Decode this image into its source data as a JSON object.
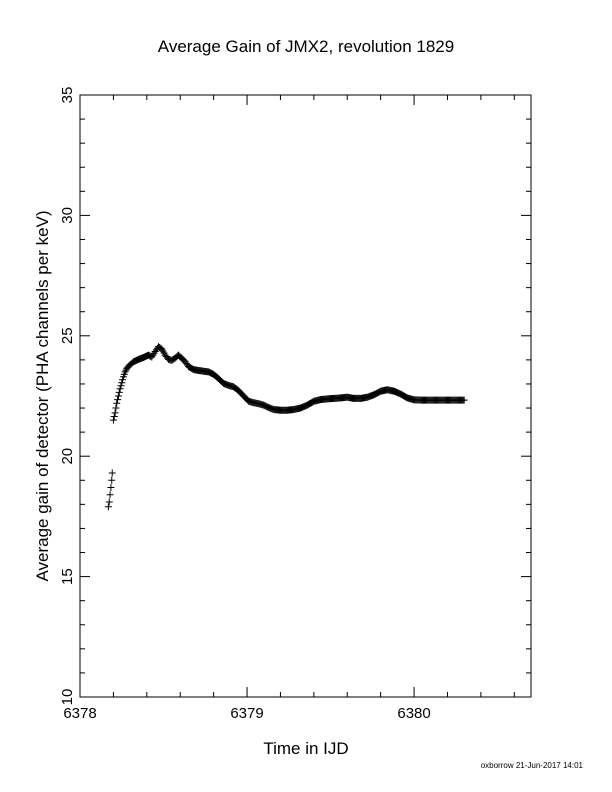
{
  "chart_data": {
    "type": "scatter",
    "title": "Average Gain of JMX2, revolution 1829",
    "xlabel": "Time in IJD",
    "ylabel": "Average gain of detector (PHA channels per keV)",
    "xlim": [
      6378,
      6380.7
    ],
    "ylim": [
      10,
      35
    ],
    "xticks": [
      6378,
      6379,
      6380
    ],
    "yticks": [
      10,
      15,
      20,
      25,
      30,
      35
    ],
    "marker": "plus",
    "grid": false,
    "footer": "oxborrow 21-Jun-2017 14:01",
    "series": [
      {
        "points": [
          [
            6378.17,
            17.9
          ],
          [
            6378.175,
            18.1
          ],
          [
            6378.18,
            18.4
          ],
          [
            6378.185,
            18.7
          ],
          [
            6378.19,
            19.0
          ],
          [
            6378.193,
            19.3
          ],
          [
            6378.2,
            21.5
          ],
          [
            6378.21,
            21.8
          ],
          [
            6378.22,
            22.2
          ],
          [
            6378.23,
            22.5
          ],
          [
            6378.24,
            22.8
          ],
          [
            6378.25,
            23.05
          ],
          [
            6378.26,
            23.3
          ],
          [
            6378.27,
            23.5
          ],
          [
            6378.28,
            23.65
          ],
          [
            6378.3,
            23.8
          ],
          [
            6378.32,
            23.92
          ],
          [
            6378.35,
            24.02
          ],
          [
            6378.38,
            24.1
          ],
          [
            6378.41,
            24.2
          ],
          [
            6378.43,
            24.12
          ],
          [
            6378.45,
            24.35
          ],
          [
            6378.47,
            24.55
          ],
          [
            6378.49,
            24.45
          ],
          [
            6378.51,
            24.2
          ],
          [
            6378.53,
            24.02
          ],
          [
            6378.55,
            23.98
          ],
          [
            6378.57,
            24.08
          ],
          [
            6378.59,
            24.2
          ],
          [
            6378.61,
            24.06
          ],
          [
            6378.63,
            23.92
          ],
          [
            6378.65,
            23.72
          ],
          [
            6378.68,
            23.6
          ],
          [
            6378.71,
            23.56
          ],
          [
            6378.74,
            23.53
          ],
          [
            6378.77,
            23.5
          ],
          [
            6378.8,
            23.4
          ],
          [
            6378.83,
            23.22
          ],
          [
            6378.86,
            23.02
          ],
          [
            6378.89,
            22.94
          ],
          [
            6378.92,
            22.88
          ],
          [
            6378.95,
            22.72
          ],
          [
            6378.98,
            22.5
          ],
          [
            6379.01,
            22.28
          ],
          [
            6379.04,
            22.22
          ],
          [
            6379.07,
            22.18
          ],
          [
            6379.1,
            22.12
          ],
          [
            6379.13,
            22.02
          ],
          [
            6379.16,
            21.94
          ],
          [
            6379.2,
            21.91
          ],
          [
            6379.24,
            21.91
          ],
          [
            6379.28,
            21.94
          ],
          [
            6379.32,
            22.0
          ],
          [
            6379.36,
            22.12
          ],
          [
            6379.4,
            22.28
          ],
          [
            6379.44,
            22.35
          ],
          [
            6379.48,
            22.38
          ],
          [
            6379.52,
            22.4
          ],
          [
            6379.56,
            22.42
          ],
          [
            6379.6,
            22.45
          ],
          [
            6379.64,
            22.4
          ],
          [
            6379.68,
            22.4
          ],
          [
            6379.72,
            22.45
          ],
          [
            6379.76,
            22.55
          ],
          [
            6379.8,
            22.7
          ],
          [
            6379.84,
            22.76
          ],
          [
            6379.88,
            22.7
          ],
          [
            6379.92,
            22.58
          ],
          [
            6379.96,
            22.42
          ],
          [
            6380.0,
            22.34
          ],
          [
            6380.05,
            22.33
          ],
          [
            6380.1,
            22.33
          ],
          [
            6380.15,
            22.33
          ],
          [
            6380.2,
            22.33
          ],
          [
            6380.25,
            22.33
          ],
          [
            6380.3,
            22.33
          ]
        ]
      }
    ]
  }
}
